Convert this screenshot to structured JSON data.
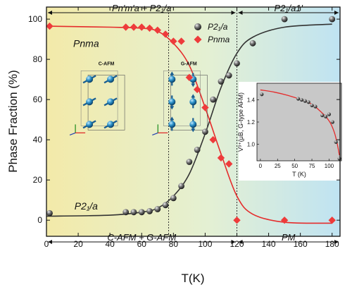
{
  "chart_data": {
    "type": "scatter",
    "xlabel": "T(K)",
    "ylabel": "Phase Fraction (%)",
    "xlim": [
      0,
      185
    ],
    "ylim": [
      -8,
      106
    ],
    "xticks": [
      0,
      20,
      40,
      60,
      80,
      100,
      120,
      140,
      160,
      180
    ],
    "yticks": [
      0,
      20,
      40,
      60,
      80,
      100
    ],
    "background_gradient": [
      "#f3eaa9",
      "#e4f0d3",
      "#bfe3f2"
    ],
    "vlines": [
      77,
      120
    ],
    "top_regions": [
      {
        "label": "Pn'm'a + P2₁/a",
        "from": 0,
        "to": 120
      },
      {
        "label": "P2₁/a1'",
        "from": 120,
        "to": 185
      }
    ],
    "bottom_regions": [
      {
        "label": "C-AFM + G-AFM",
        "from": 0,
        "to": 120
      },
      {
        "label": "PM",
        "from": 120,
        "to": 185
      }
    ],
    "phase_labels": [
      {
        "text": "Pnma",
        "x": 25,
        "y": 88
      },
      {
        "text": "P2₁/a",
        "x": 25,
        "y": 7
      }
    ],
    "legend": [
      {
        "name": "P2₁/a",
        "marker": "sphere",
        "color": "#555555"
      },
      {
        "name": "Pnma",
        "marker": "diamond",
        "color": "#ee3b3b"
      }
    ],
    "series": [
      {
        "name": "P2₁/a",
        "color": "#555555",
        "marker": "sphere",
        "points": [
          [
            2,
            3.5
          ],
          [
            50,
            4
          ],
          [
            55,
            4
          ],
          [
            60,
            4
          ],
          [
            65,
            4.5
          ],
          [
            70,
            5.5
          ],
          [
            75,
            7.5
          ],
          [
            80,
            11
          ],
          [
            85,
            17
          ],
          [
            90,
            29
          ],
          [
            95,
            35
          ],
          [
            100,
            44
          ],
          [
            105,
            60
          ],
          [
            110,
            69
          ],
          [
            115,
            72
          ],
          [
            120,
            78
          ],
          [
            130,
            88
          ],
          [
            150,
            100
          ],
          [
            180,
            100
          ]
        ],
        "fit": [
          [
            0,
            2
          ],
          [
            40,
            2.5
          ],
          [
            60,
            4
          ],
          [
            70,
            6
          ],
          [
            80,
            12
          ],
          [
            90,
            23
          ],
          [
            100,
            43
          ],
          [
            110,
            66
          ],
          [
            120,
            83
          ],
          [
            130,
            91
          ],
          [
            150,
            96
          ],
          [
            180,
            97.5
          ]
        ]
      },
      {
        "name": "Pnma",
        "color": "#ee3b3b",
        "marker": "diamond",
        "points": [
          [
            2,
            96.5
          ],
          [
            50,
            96
          ],
          [
            55,
            96
          ],
          [
            60,
            96
          ],
          [
            65,
            95.5
          ],
          [
            70,
            94.5
          ],
          [
            75,
            92.5
          ],
          [
            80,
            89
          ],
          [
            85,
            89
          ],
          [
            90,
            71
          ],
          [
            95,
            65
          ],
          [
            100,
            56
          ],
          [
            105,
            40
          ],
          [
            110,
            31
          ],
          [
            115,
            28
          ],
          [
            120,
            0
          ],
          [
            150,
            0
          ],
          [
            180,
            0
          ]
        ],
        "fit": [
          [
            0,
            96.5
          ],
          [
            40,
            96
          ],
          [
            60,
            95.5
          ],
          [
            70,
            94
          ],
          [
            80,
            88
          ],
          [
            90,
            77
          ],
          [
            100,
            56
          ],
          [
            110,
            33
          ],
          [
            120,
            12
          ],
          [
            130,
            3
          ],
          [
            150,
            -1
          ],
          [
            180,
            -1.5
          ]
        ]
      }
    ],
    "inset": {
      "xlabel": "T (K)",
      "ylabel": "V³⁺(μB, G-type AFM)",
      "xlim": [
        -5,
        118
      ],
      "ylim": [
        0.85,
        1.55
      ],
      "xticks": [
        0,
        25,
        50,
        75,
        100
      ],
      "yticks": [
        1.0,
        1.2,
        1.4
      ],
      "background": "#c8c8c8",
      "points": [
        [
          2,
          1.45
        ],
        [
          55,
          1.41
        ],
        [
          60,
          1.4
        ],
        [
          65,
          1.39
        ],
        [
          70,
          1.38
        ],
        [
          75,
          1.35
        ],
        [
          80,
          1.34
        ],
        [
          90,
          1.26
        ],
        [
          95,
          1.25
        ],
        [
          100,
          1.27
        ],
        [
          105,
          1.2
        ],
        [
          110,
          1.02
        ],
        [
          115,
          0.87
        ]
      ],
      "fit": [
        [
          0,
          1.49
        ],
        [
          20,
          1.47
        ],
        [
          40,
          1.44
        ],
        [
          60,
          1.4
        ],
        [
          75,
          1.36
        ],
        [
          85,
          1.31
        ],
        [
          95,
          1.25
        ],
        [
          102,
          1.19
        ],
        [
          108,
          1.1
        ],
        [
          112,
          1.0
        ],
        [
          115,
          0.9
        ]
      ]
    },
    "structure_labels": [
      "C-AFM",
      "G-AFM"
    ]
  }
}
